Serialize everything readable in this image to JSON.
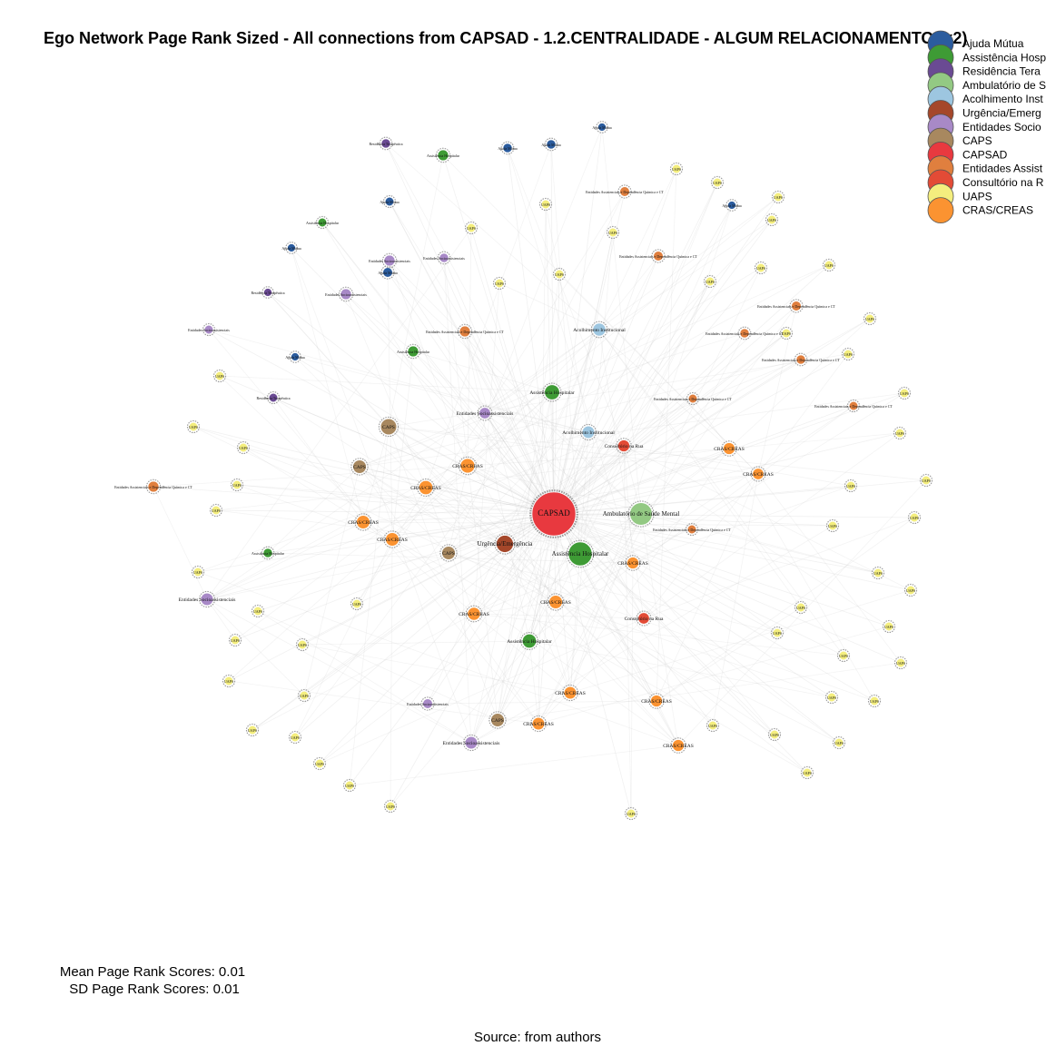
{
  "title": "Ego Network Page Rank Sized - All connections from CAPSAD - 1.2.CENTRALIDADE - ALGUM RELACIONAMENTO (x2)",
  "legend": [
    {
      "label": "Ajuda Mútua",
      "color": "#2b5c9e"
    },
    {
      "label": "Assistência Hosp",
      "color": "#3e9b35"
    },
    {
      "label": "Residência Tera",
      "color": "#6a4a93"
    },
    {
      "label": "Ambulatório de S",
      "color": "#93c983"
    },
    {
      "label": "Acolhimento Inst",
      "color": "#9dc6e0"
    },
    {
      "label": "Urgência/Emerg",
      "color": "#a5472a"
    },
    {
      "label": "Entidades Socio",
      "color": "#a889c7"
    },
    {
      "label": "CAPS",
      "color": "#a8885f"
    },
    {
      "label": "CAPSAD",
      "color": "#e8393f"
    },
    {
      "label": "Entidades Assist",
      "color": "#e07f3e"
    },
    {
      "label": "Consultório na R",
      "color": "#e34b36"
    },
    {
      "label": "UAPS",
      "color": "#f4ee7e"
    },
    {
      "label": "CRAS/CREAS",
      "color": "#fb9331"
    }
  ],
  "nodes": [
    {
      "label": "CAPSAD",
      "category": "CAPSAD",
      "rank": 1.0,
      "center": true
    },
    {
      "label": "Ambulatório de Saúde Mental",
      "category": "Ambulatório de S",
      "rank": 0.32
    },
    {
      "label": "Assistência Hospitalar",
      "category": "Assistência Hosp",
      "rank": 0.35
    },
    {
      "label": "Urgência/Emergência",
      "category": "Urgência/Emerg",
      "rank": 0.22
    },
    {
      "label": "Assistência Hospitalar",
      "category": "Assistência Hosp",
      "rank": 0.18
    },
    {
      "label": "Assistência Hospitalar",
      "category": "Assistência Hosp",
      "rank": 0.16
    },
    {
      "label": "Acolhimento Institucional",
      "category": "Acolhimento Inst",
      "rank": 0.14
    },
    {
      "label": "Acolhimento Institucional",
      "category": "Acolhimento Inst",
      "rank": 0.13
    },
    {
      "label": "Consultório na Rua",
      "category": "Consultório na R",
      "rank": 0.12
    },
    {
      "label": "Consultório na Rua",
      "category": "Consultório na R",
      "rank": 0.11
    },
    {
      "label": "CAPS",
      "category": "CAPS",
      "rank": 0.2
    },
    {
      "label": "CAPS",
      "category": "CAPS",
      "rank": 0.15
    },
    {
      "label": "CAPS",
      "category": "CAPS",
      "rank": 0.15
    },
    {
      "label": "CAPS",
      "category": "CAPS",
      "rank": 0.15
    },
    {
      "label": "CRAS/CREAS",
      "category": "CRAS/CREAS",
      "rank": 0.17
    },
    {
      "label": "CRAS/CREAS",
      "category": "CRAS/CREAS",
      "rank": 0.16
    },
    {
      "label": "CRAS/CREAS",
      "category": "CRAS/CREAS",
      "rank": 0.15
    },
    {
      "label": "CRAS/CREAS",
      "category": "CRAS/CREAS",
      "rank": 0.15
    },
    {
      "label": "CRAS/CREAS",
      "category": "CRAS/CREAS",
      "rank": 0.15
    },
    {
      "label": "CRAS/CREAS",
      "category": "CRAS/CREAS",
      "rank": 0.14
    },
    {
      "label": "CRAS/CREAS",
      "category": "CRAS/CREAS",
      "rank": 0.13
    },
    {
      "label": "CRAS/CREAS",
      "category": "CRAS/CREAS",
      "rank": 0.13
    },
    {
      "label": "CRAS/CREAS",
      "category": "CRAS/CREAS",
      "rank": 0.12
    },
    {
      "label": "CRAS/CREAS",
      "category": "CRAS/CREAS",
      "rank": 0.12
    },
    {
      "label": "CRAS/CREAS",
      "category": "CRAS/CREAS",
      "rank": 0.12
    },
    {
      "label": "CRAS/CREAS",
      "category": "CRAS/CREAS",
      "rank": 0.12
    },
    {
      "label": "CRAS/CREAS",
      "category": "CRAS/CREAS",
      "rank": 0.11
    },
    {
      "label": "Entidades Socioassistenciais",
      "category": "Entidades Socio",
      "rank": 0.13
    },
    {
      "label": "Entidades Socioassistenciais",
      "category": "Entidades Socio",
      "rank": 0.11
    },
    {
      "label": "Entidades Socioassistenciais",
      "category": "Entidades Socio",
      "rank": 0.1
    },
    {
      "label": "Entidades Socioassistenciais",
      "category": "Entidades Socio",
      "rank": 0.13
    },
    {
      "label": "Entidades Socioassistenciais",
      "category": "Entidades Socio",
      "rank": 0.1
    },
    {
      "label": "Entidades Socioassistenciais",
      "category": "Entidades Socio",
      "rank": 0.08
    },
    {
      "label": "Entidades Socioassistenciais",
      "category": "Entidades Socio",
      "rank": 0.07
    },
    {
      "label": "Entidades Socioassistenciais",
      "category": "Entidades Socio",
      "rank": 0.06
    },
    {
      "label": "Entidades Assistenciais e Dependência Química e CT",
      "category": "Entidades Assist",
      "rank": 0.1
    },
    {
      "label": "Entidades Assistenciais e Dependência Química e CT",
      "category": "Entidades Assist",
      "rank": 0.1
    },
    {
      "label": "Entidades Assistenciais e Dependência Química e CT",
      "category": "Entidades Assist",
      "rank": 0.08
    },
    {
      "label": "Entidades Assistenciais e Dependência Química e CT",
      "category": "Entidades Assist",
      "rank": 0.08
    },
    {
      "label": "Entidades Assistenciais e Dependência Química e CT",
      "category": "Entidades Assist",
      "rank": 0.08
    },
    {
      "label": "Entidades Assistenciais e Dependência Química e CT",
      "category": "Entidades Assist",
      "rank": 0.07
    },
    {
      "label": "Entidades Assistenciais e Dependência Química e CT",
      "category": "Entidades Assist",
      "rank": 0.07
    },
    {
      "label": "Entidades Assistenciais e Dependência Química e CT",
      "category": "Entidades Assist",
      "rank": 0.06
    },
    {
      "label": "Entidades Assistenciais e Dependência Química e CT",
      "category": "Entidades Assist",
      "rank": 0.06
    },
    {
      "label": "Entidades Assistenciais e Dependência Química e CT",
      "category": "Entidades Assist",
      "rank": 0.06
    },
    {
      "label": "Assistência Hospitalar",
      "category": "Assistência Hosp",
      "rank": 0.1
    },
    {
      "label": "Assistência Hospitalar",
      "category": "Assistência Hosp",
      "rank": 0.1
    },
    {
      "label": "Assistência Hospitalar",
      "category": "Assistência Hosp",
      "rank": 0.07
    },
    {
      "label": "Assistência Hospitalar",
      "category": "Assistência Hosp",
      "rank": 0.06
    },
    {
      "label": "Residência Terapêutica",
      "category": "Residência Tera",
      "rank": 0.07
    },
    {
      "label": "Residência Terapêutica",
      "category": "Residência Tera",
      "rank": 0.06
    },
    {
      "label": "Residência Terapêutica",
      "category": "Residência Tera",
      "rank": 0.05
    },
    {
      "label": "Ajuda Mútua",
      "category": "Ajuda Mútua",
      "rank": 0.08
    },
    {
      "label": "Ajuda Mútua",
      "category": "Ajuda Mútua",
      "rank": 0.07
    },
    {
      "label": "Ajuda Mútua",
      "category": "Ajuda Mútua",
      "rank": 0.07
    },
    {
      "label": "Ajuda Mútua",
      "category": "Ajuda Mútua",
      "rank": 0.06
    },
    {
      "label": "Ajuda Mútua",
      "category": "Ajuda Mútua",
      "rank": 0.05
    },
    {
      "label": "Ajuda Mútua",
      "category": "Ajuda Mútua",
      "rank": 0.05
    },
    {
      "label": "Ajuda Mútua",
      "category": "Ajuda Mútua",
      "rank": 0.05
    },
    {
      "label": "Ajuda Mútua",
      "category": "Ajuda Mútua",
      "rank": 0.05
    },
    {
      "label": "UAPS",
      "category": "UAPS",
      "rank": 0.06
    },
    {
      "label": "UAPS",
      "category": "UAPS",
      "rank": 0.06
    },
    {
      "label": "UAPS",
      "category": "UAPS",
      "rank": 0.06
    },
    {
      "label": "UAPS",
      "category": "UAPS",
      "rank": 0.06
    },
    {
      "label": "UAPS",
      "category": "UAPS",
      "rank": 0.06
    },
    {
      "label": "UAPS",
      "category": "UAPS",
      "rank": 0.06
    },
    {
      "label": "UAPS",
      "category": "UAPS",
      "rank": 0.06
    },
    {
      "label": "UAPS",
      "category": "UAPS",
      "rank": 0.06
    },
    {
      "label": "UAPS",
      "category": "UAPS",
      "rank": 0.06
    },
    {
      "label": "UAPS",
      "category": "UAPS",
      "rank": 0.06
    },
    {
      "label": "UAPS",
      "category": "UAPS",
      "rank": 0.06
    },
    {
      "label": "UAPS",
      "category": "UAPS",
      "rank": 0.06
    },
    {
      "label": "UAPS",
      "category": "UAPS",
      "rank": 0.06
    },
    {
      "label": "UAPS",
      "category": "UAPS",
      "rank": 0.06
    },
    {
      "label": "UAPS",
      "category": "UAPS",
      "rank": 0.06
    },
    {
      "label": "UAPS",
      "category": "UAPS",
      "rank": 0.06
    },
    {
      "label": "UAPS",
      "category": "UAPS",
      "rank": 0.06
    },
    {
      "label": "UAPS",
      "category": "UAPS",
      "rank": 0.06
    },
    {
      "label": "UAPS",
      "category": "UAPS",
      "rank": 0.06
    },
    {
      "label": "UAPS",
      "category": "UAPS",
      "rank": 0.06
    },
    {
      "label": "UAPS",
      "category": "UAPS",
      "rank": 0.06
    },
    {
      "label": "UAPS",
      "category": "UAPS",
      "rank": 0.06
    },
    {
      "label": "UAPS",
      "category": "UAPS",
      "rank": 0.06
    },
    {
      "label": "UAPS",
      "category": "UAPS",
      "rank": 0.06
    },
    {
      "label": "UAPS",
      "category": "UAPS",
      "rank": 0.06
    },
    {
      "label": "UAPS",
      "category": "UAPS",
      "rank": 0.06
    },
    {
      "label": "UAPS",
      "category": "UAPS",
      "rank": 0.06
    },
    {
      "label": "UAPS",
      "category": "UAPS",
      "rank": 0.06
    },
    {
      "label": "UAPS",
      "category": "UAPS",
      "rank": 0.06
    },
    {
      "label": "UAPS",
      "category": "UAPS",
      "rank": 0.06
    },
    {
      "label": "UAPS",
      "category": "UAPS",
      "rank": 0.06
    },
    {
      "label": "UAPS",
      "category": "UAPS",
      "rank": 0.06
    },
    {
      "label": "UAPS",
      "category": "UAPS",
      "rank": 0.06
    },
    {
      "label": "UAPS",
      "category": "UAPS",
      "rank": 0.06
    },
    {
      "label": "UAPS",
      "category": "UAPS",
      "rank": 0.06
    },
    {
      "label": "UAPS",
      "category": "UAPS",
      "rank": 0.06
    },
    {
      "label": "UAPS",
      "category": "UAPS",
      "rank": 0.06
    },
    {
      "label": "UAPS",
      "category": "UAPS",
      "rank": 0.06
    },
    {
      "label": "UAPS",
      "category": "UAPS",
      "rank": 0.06
    },
    {
      "label": "UAPS",
      "category": "UAPS",
      "rank": 0.06
    },
    {
      "label": "UAPS",
      "category": "UAPS",
      "rank": 0.06
    },
    {
      "label": "UAPS",
      "category": "UAPS",
      "rank": 0.06
    },
    {
      "label": "UAPS",
      "category": "UAPS",
      "rank": 0.06
    },
    {
      "label": "UAPS",
      "category": "UAPS",
      "rank": 0.06
    },
    {
      "label": "UAPS",
      "category": "UAPS",
      "rank": 0.06
    },
    {
      "label": "UAPS",
      "category": "UAPS",
      "rank": 0.06
    },
    {
      "label": "UAPS",
      "category": "UAPS",
      "rank": 0.06
    },
    {
      "label": "UAPS",
      "category": "UAPS",
      "rank": 0.06
    },
    {
      "label": "UAPS",
      "category": "UAPS",
      "rank": 0.06
    },
    {
      "label": "UAPS",
      "category": "UAPS",
      "rank": 0.06
    },
    {
      "label": "UAPS",
      "category": "UAPS",
      "rank": 0.06
    },
    {
      "label": "UAPS",
      "category": "UAPS",
      "rank": 0.06
    }
  ],
  "stats": {
    "mean_label": "Mean Page Rank Scores: 0.01",
    "sd_label": "SD Page Rank Scores: 0.01"
  },
  "source_label": "Source: from authors"
}
